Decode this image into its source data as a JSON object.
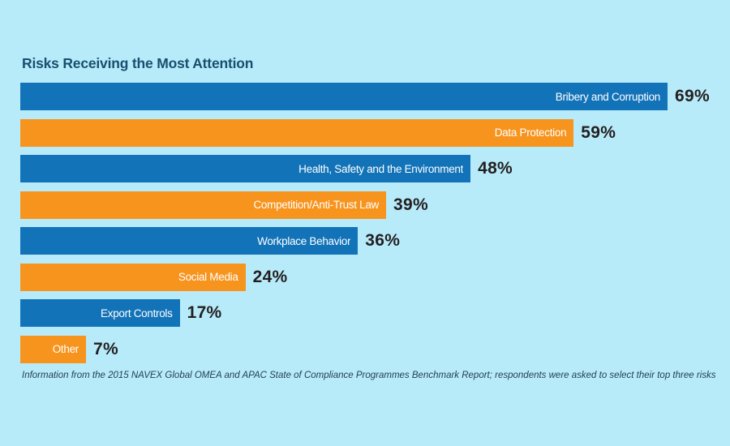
{
  "title": "Risks Receiving the Most Attention",
  "footer": "Information from the 2015 NAVEX Global OMEA and APAC State of Compliance Programmes Benchmark Report; respondents were asked to select their top three risks",
  "colors": {
    "bg": "#B8EBFA",
    "blue": "#1273B8",
    "orange": "#F7941E",
    "title": "#175070",
    "pct": "#231F20",
    "barlabel": "#FFFFFF",
    "footer": "#1E3D52"
  },
  "chart_data": {
    "type": "bar",
    "orientation": "horizontal",
    "title": "Risks Receiving the Most Attention",
    "categories": [
      "Bribery and Corruption",
      "Data Protection",
      "Health, Safety and the Environment",
      "Competition/Anti-Trust Law",
      "Workplace Behavior",
      "Social Media",
      "Export Controls",
      "Other"
    ],
    "values": [
      69,
      59,
      48,
      39,
      36,
      24,
      17,
      7
    ],
    "value_labels": [
      "69%",
      "59%",
      "48%",
      "39%",
      "36%",
      "24%",
      "17%",
      "7%"
    ],
    "xlim": [
      0,
      69
    ],
    "grid": false,
    "legend": "none",
    "bar_color_pattern": [
      "#1273B8",
      "#F7941E"
    ],
    "category_label_position": "inside-right",
    "value_label_position": "outside-right"
  }
}
